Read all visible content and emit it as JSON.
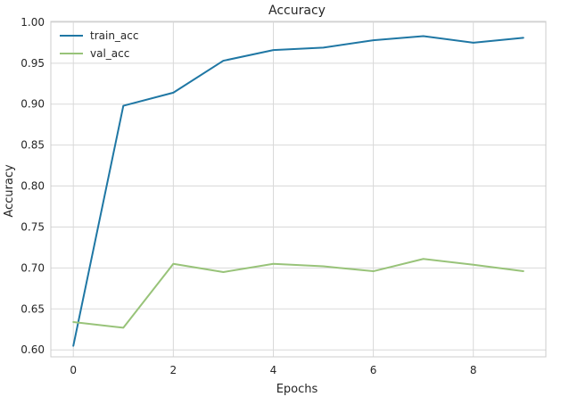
{
  "chart_data": {
    "type": "line",
    "title": "Accuracy",
    "xlabel": "Epochs",
    "ylabel": "Accuracy",
    "xlim": [
      -0.45,
      9.45
    ],
    "ylim": [
      0.5915,
      1.001
    ],
    "xticks": [
      0,
      2,
      4,
      6,
      8
    ],
    "yticks": [
      0.6,
      0.65,
      0.7,
      0.75,
      0.8,
      0.85,
      0.9,
      0.95,
      1.0
    ],
    "grid": true,
    "legend_position": "top-left",
    "x": [
      0,
      1,
      2,
      3,
      4,
      5,
      6,
      7,
      8,
      9
    ],
    "series": [
      {
        "name": "train_acc",
        "color": "#1f77a4",
        "values": [
          0.605,
          0.898,
          0.914,
          0.953,
          0.966,
          0.969,
          0.978,
          0.983,
          0.975,
          0.981
        ]
      },
      {
        "name": "val_acc",
        "color": "#98c379",
        "values": [
          0.634,
          0.627,
          0.705,
          0.695,
          0.705,
          0.702,
          0.696,
          0.711,
          0.704,
          0.696
        ]
      }
    ]
  }
}
